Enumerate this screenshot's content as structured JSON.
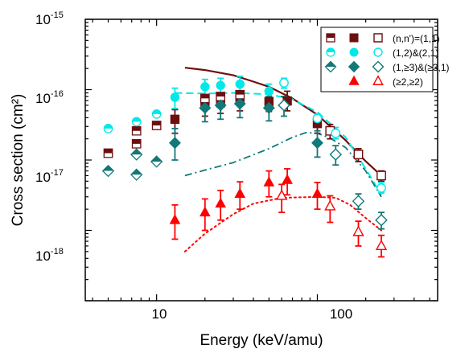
{
  "chart_data": {
    "type": "scatter",
    "xscale": "log",
    "yscale": "log",
    "xlim": [
      3.6,
      560
    ],
    "ylim": [
      1e-19,
      1e-15
    ],
    "xlabel": "Energy (keV/amu)",
    "ylabel": "Cross section (cm²)",
    "x_tick_labels": [
      {
        "value": 10,
        "label": "10"
      },
      {
        "value": 100,
        "label": "100"
      }
    ],
    "y_tick_labels": [
      {
        "value": 1e-15,
        "base": "10",
        "exp": "-15"
      },
      {
        "value": 1e-16,
        "base": "10",
        "exp": "-16"
      },
      {
        "value": 1e-17,
        "base": "10",
        "exp": "-17"
      },
      {
        "value": 1e-18,
        "base": "10",
        "exp": "-18"
      }
    ],
    "grid": false,
    "legend_position": "top-right",
    "series": [
      {
        "name": "(n,n')=(1,1)",
        "color": "#6e0f0f",
        "shape": "square",
        "filled": [
          {
            "x": 13,
            "y": 3.8e-17,
            "lo": 2.4e-17,
            "hi": 5.2e-17
          },
          {
            "x": 20,
            "y": 6e-17,
            "lo": 4.2e-17,
            "hi": 8.5e-17
          },
          {
            "x": 25,
            "y": 6.5e-17,
            "lo": 4.6e-17,
            "hi": 9e-17
          },
          {
            "x": 33,
            "y": 7e-17,
            "lo": 5e-17,
            "hi": 9.5e-17
          },
          {
            "x": 50,
            "y": 6.8e-17,
            "lo": 4.9e-17,
            "hi": 9.3e-17
          },
          {
            "x": 65,
            "y": 6.9e-17,
            "lo": 5e-17,
            "hi": 9.5e-17
          },
          {
            "x": 100,
            "y": 3.3e-17,
            "lo": 2.4e-17,
            "hi": 4.5e-17
          }
        ],
        "open": [
          {
            "x": 120,
            "y": 2.6e-17,
            "lo": 2e-17,
            "hi": 3.2e-17
          },
          {
            "x": 180,
            "y": 1.2e-17,
            "lo": 9.5e-18,
            "hi": 1.45e-17
          },
          {
            "x": 250,
            "y": 6e-18,
            "lo": 5e-18,
            "hi": 7e-18
          }
        ],
        "half": [
          {
            "x": 5,
            "y": 1.25e-17
          },
          {
            "x": 7.5,
            "y": 1.7e-17
          },
          {
            "x": 7.5,
            "y": 2.6e-17
          },
          {
            "x": 10,
            "y": 3.1e-17
          },
          {
            "x": 20,
            "y": 7.5e-17
          },
          {
            "x": 25,
            "y": 8e-17
          },
          {
            "x": 33,
            "y": 8.5e-17
          }
        ]
      },
      {
        "name": "(1,2)&(2,1)",
        "color": "#00e8e8",
        "shape": "circle",
        "filled": [
          {
            "x": 13,
            "y": 7.8e-17,
            "lo": 5.4e-17,
            "hi": 1.05e-16
          },
          {
            "x": 20,
            "y": 1.1e-16,
            "lo": 8.5e-17,
            "hi": 1.4e-16
          },
          {
            "x": 25,
            "y": 1.15e-16,
            "lo": 9e-17,
            "hi": 1.45e-16
          },
          {
            "x": 33,
            "y": 1.2e-16,
            "lo": 9.5e-17,
            "hi": 1.55e-16
          },
          {
            "x": 50,
            "y": 9.5e-17,
            "lo": 7.5e-17,
            "hi": 1.2e-16
          }
        ],
        "open": [
          {
            "x": 62,
            "y": 1.25e-16,
            "lo": 1.05e-16,
            "hi": 1.45e-16
          },
          {
            "x": 100,
            "y": 3.9e-17,
            "lo": 3.3e-17,
            "hi": 4.5e-17
          },
          {
            "x": 130,
            "y": 2.4e-17,
            "lo": 2e-17,
            "hi": 2.9e-17
          },
          {
            "x": 250,
            "y": 4e-18,
            "lo": 3.4e-18,
            "hi": 4.8e-18
          }
        ],
        "half": [
          {
            "x": 5,
            "y": 2.8e-17
          },
          {
            "x": 7.5,
            "y": 3.5e-17
          },
          {
            "x": 10,
            "y": 4.5e-17
          }
        ]
      },
      {
        "name": "(1,≥3)&(≥3,1)",
        "color": "#127878",
        "shape": "diamond",
        "filled": [
          {
            "x": 13,
            "y": 1.75e-17,
            "lo": 1e-17,
            "hi": 2.8e-17
          },
          {
            "x": 20,
            "y": 5.5e-17,
            "lo": 3.5e-17,
            "hi": 8e-17
          },
          {
            "x": 25,
            "y": 6e-17,
            "lo": 3.8e-17,
            "hi": 8.5e-17
          },
          {
            "x": 33,
            "y": 6.3e-17,
            "lo": 4e-17,
            "hi": 9e-17
          },
          {
            "x": 50,
            "y": 5.5e-17,
            "lo": 3.6e-17,
            "hi": 8e-17
          },
          {
            "x": 100,
            "y": 1.75e-17,
            "lo": 1.1e-17,
            "hi": 2.6e-17
          }
        ],
        "open": [
          {
            "x": 62,
            "y": 6e-17,
            "lo": 4.2e-17,
            "hi": 8e-17
          },
          {
            "x": 130,
            "y": 1.2e-17,
            "lo": 8.5e-18,
            "hi": 1.6e-17
          },
          {
            "x": 180,
            "y": 2.6e-18,
            "lo": 2e-18,
            "hi": 3.3e-18
          },
          {
            "x": 250,
            "y": 1.4e-18,
            "lo": 1.05e-18,
            "hi": 1.8e-18
          }
        ],
        "half": [
          {
            "x": 5,
            "y": 7e-18
          },
          {
            "x": 7.5,
            "y": 6.2e-18
          },
          {
            "x": 7.5,
            "y": 1.2e-17
          },
          {
            "x": 10,
            "y": 9.5e-18
          }
        ]
      },
      {
        "name": "(≥2,≥2)",
        "color": "#ff0000",
        "shape": "triangle",
        "filled": [
          {
            "x": 13,
            "y": 1.4e-18,
            "lo": 7.5e-19,
            "hi": 2.3e-18
          },
          {
            "x": 20,
            "y": 1.8e-18,
            "lo": 1e-18,
            "hi": 2.8e-18
          },
          {
            "x": 25,
            "y": 2.4e-18,
            "lo": 1.4e-18,
            "hi": 3.7e-18
          },
          {
            "x": 33,
            "y": 3.3e-18,
            "lo": 2e-18,
            "hi": 4.9e-18
          },
          {
            "x": 50,
            "y": 4.8e-18,
            "lo": 3e-18,
            "hi": 7e-18
          },
          {
            "x": 65,
            "y": 5.2e-18,
            "lo": 3.2e-18,
            "hi": 7.5e-18
          },
          {
            "x": 100,
            "y": 3.3e-18,
            "lo": 2e-18,
            "hi": 4.8e-18
          }
        ],
        "open": [
          {
            "x": 60,
            "y": 3.1e-18,
            "lo": 1.8e-18,
            "hi": 4.5e-18
          },
          {
            "x": 120,
            "y": 2.2e-18,
            "lo": 1.3e-18,
            "hi": 3.1e-18
          },
          {
            "x": 180,
            "y": 9.5e-19,
            "lo": 6e-19,
            "hi": 1.35e-18
          },
          {
            "x": 250,
            "y": 6e-19,
            "lo": 4.2e-19,
            "hi": 8.5e-19
          }
        ],
        "half": []
      }
    ],
    "curves": [
      {
        "color": "#6e0f0f",
        "style": "solid",
        "width": 2.2,
        "points": [
          [
            15,
            2.05e-16
          ],
          [
            20,
            1.9e-16
          ],
          [
            30,
            1.6e-16
          ],
          [
            40,
            1.3e-16
          ],
          [
            50,
            1.1e-16
          ],
          [
            70,
            7.5e-17
          ],
          [
            100,
            4.4e-17
          ],
          [
            150,
            1.9e-17
          ],
          [
            200,
            9.6e-18
          ],
          [
            250,
            6e-18
          ]
        ]
      },
      {
        "color": "#00e8e8",
        "style": "dashed",
        "width": 2,
        "points": [
          [
            13,
            9e-17
          ],
          [
            20,
            8.8e-17
          ],
          [
            30,
            9e-17
          ],
          [
            50,
            8.6e-17
          ],
          [
            70,
            7.3e-17
          ],
          [
            100,
            4.8e-17
          ],
          [
            150,
            2.1e-17
          ],
          [
            200,
            7.5e-18
          ],
          [
            250,
            3.2e-18
          ]
        ]
      },
      {
        "color": "#127878",
        "style": "dashdot",
        "width": 1.8,
        "points": [
          [
            15,
            6e-18
          ],
          [
            20,
            7.2e-18
          ],
          [
            30,
            9.2e-18
          ],
          [
            50,
            1.45e-17
          ],
          [
            70,
            2.1e-17
          ],
          [
            85,
            2.45e-17
          ],
          [
            100,
            2.4e-17
          ],
          [
            120,
            2.05e-17
          ],
          [
            150,
            1.5e-17
          ],
          [
            200,
            7e-18
          ],
          [
            250,
            3e-18
          ]
        ]
      },
      {
        "color": "#ff0000",
        "style": "dotted",
        "width": 2,
        "points": [
          [
            15,
            5e-19
          ],
          [
            20,
            9e-19
          ],
          [
            30,
            1.7e-18
          ],
          [
            40,
            2.4e-18
          ],
          [
            60,
            2.9e-18
          ],
          [
            100,
            3e-18
          ],
          [
            130,
            2.9e-18
          ],
          [
            160,
            2.3e-18
          ],
          [
            200,
            1.5e-18
          ],
          [
            250,
            1e-18
          ]
        ]
      }
    ]
  }
}
